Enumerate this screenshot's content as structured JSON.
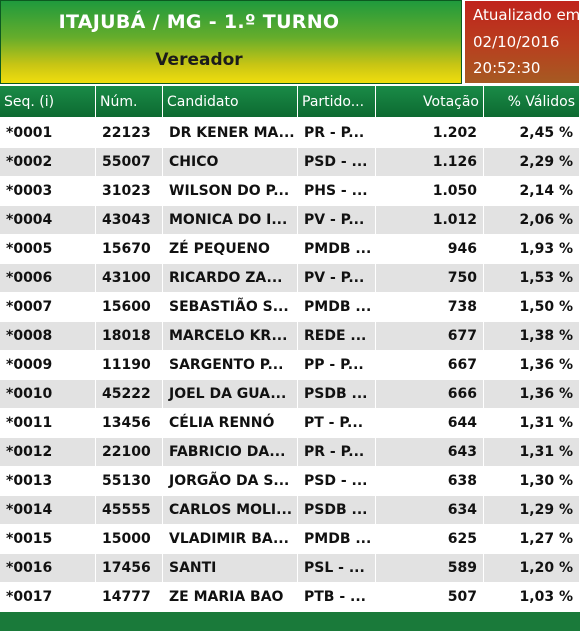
{
  "header": {
    "title": "ITAJUBÁ / MG - 1.º TURNO",
    "subtitle": "Vereador",
    "updated_label": "Atualizado em",
    "updated_date": "02/10/2016",
    "updated_time": "20:52:30"
  },
  "colors": {
    "header_green": "#1f9a3d",
    "header_yellow": "#f0de0e",
    "update_red": "#c0231c",
    "table_header_green": "#1a8b47",
    "row_alt_gray": "#e2e2e2"
  },
  "table": {
    "columns": [
      "Seq.  (i)",
      "Núm.",
      "Candidato",
      "Partido...",
      "Votação",
      "% Válidos"
    ],
    "rows": [
      [
        "*0001",
        "22123",
        "DR KENER MA...",
        "PR - P...",
        "1.202",
        "2,45 %"
      ],
      [
        "*0002",
        "55007",
        "CHICO",
        "PSD - ...",
        "1.126",
        "2,29 %"
      ],
      [
        "*0003",
        "31023",
        "WILSON DO P...",
        "PHS - ...",
        "1.050",
        "2,14 %"
      ],
      [
        "*0004",
        "43043",
        "MONICA DO I...",
        "PV - P...",
        "1.012",
        "2,06 %"
      ],
      [
        "*0005",
        "15670",
        "ZÉ PEQUENO",
        "PMDB ...",
        "946",
        "1,93 %"
      ],
      [
        "*0006",
        "43100",
        "RICARDO ZA...",
        "PV - P...",
        "750",
        "1,53 %"
      ],
      [
        "*0007",
        "15600",
        "SEBASTIÃO S...",
        "PMDB ...",
        "738",
        "1,50 %"
      ],
      [
        "*0008",
        "18018",
        "MARCELO KR...",
        "REDE ...",
        "677",
        "1,38 %"
      ],
      [
        "*0009",
        "11190",
        "SARGENTO P...",
        "PP - P...",
        "667",
        "1,36 %"
      ],
      [
        "*0010",
        "45222",
        "JOEL DA GUA...",
        "PSDB ...",
        "666",
        "1,36 %"
      ],
      [
        "*0011",
        "13456",
        "CÉLIA RENNÓ",
        "PT - P...",
        "644",
        "1,31 %"
      ],
      [
        "*0012",
        "22100",
        "FABRICIO DA...",
        "PR - P...",
        "643",
        "1,31 %"
      ],
      [
        "*0013",
        "55130",
        "JORGÃO DA S...",
        "PSD - ...",
        "638",
        "1,30 %"
      ],
      [
        "*0014",
        "45555",
        "CARLOS MOLI...",
        "PSDB ...",
        "634",
        "1,29 %"
      ],
      [
        "*0015",
        "15000",
        "VLADIMIR BA...",
        "PMDB ...",
        "625",
        "1,27 %"
      ],
      [
        "*0016",
        "17456",
        "SANTI",
        "PSL - ...",
        "589",
        "1,20 %"
      ],
      [
        "*0017",
        "14777",
        "ZE MARIA BAO",
        "PTB - ...",
        "507",
        "1,03 %"
      ]
    ]
  }
}
